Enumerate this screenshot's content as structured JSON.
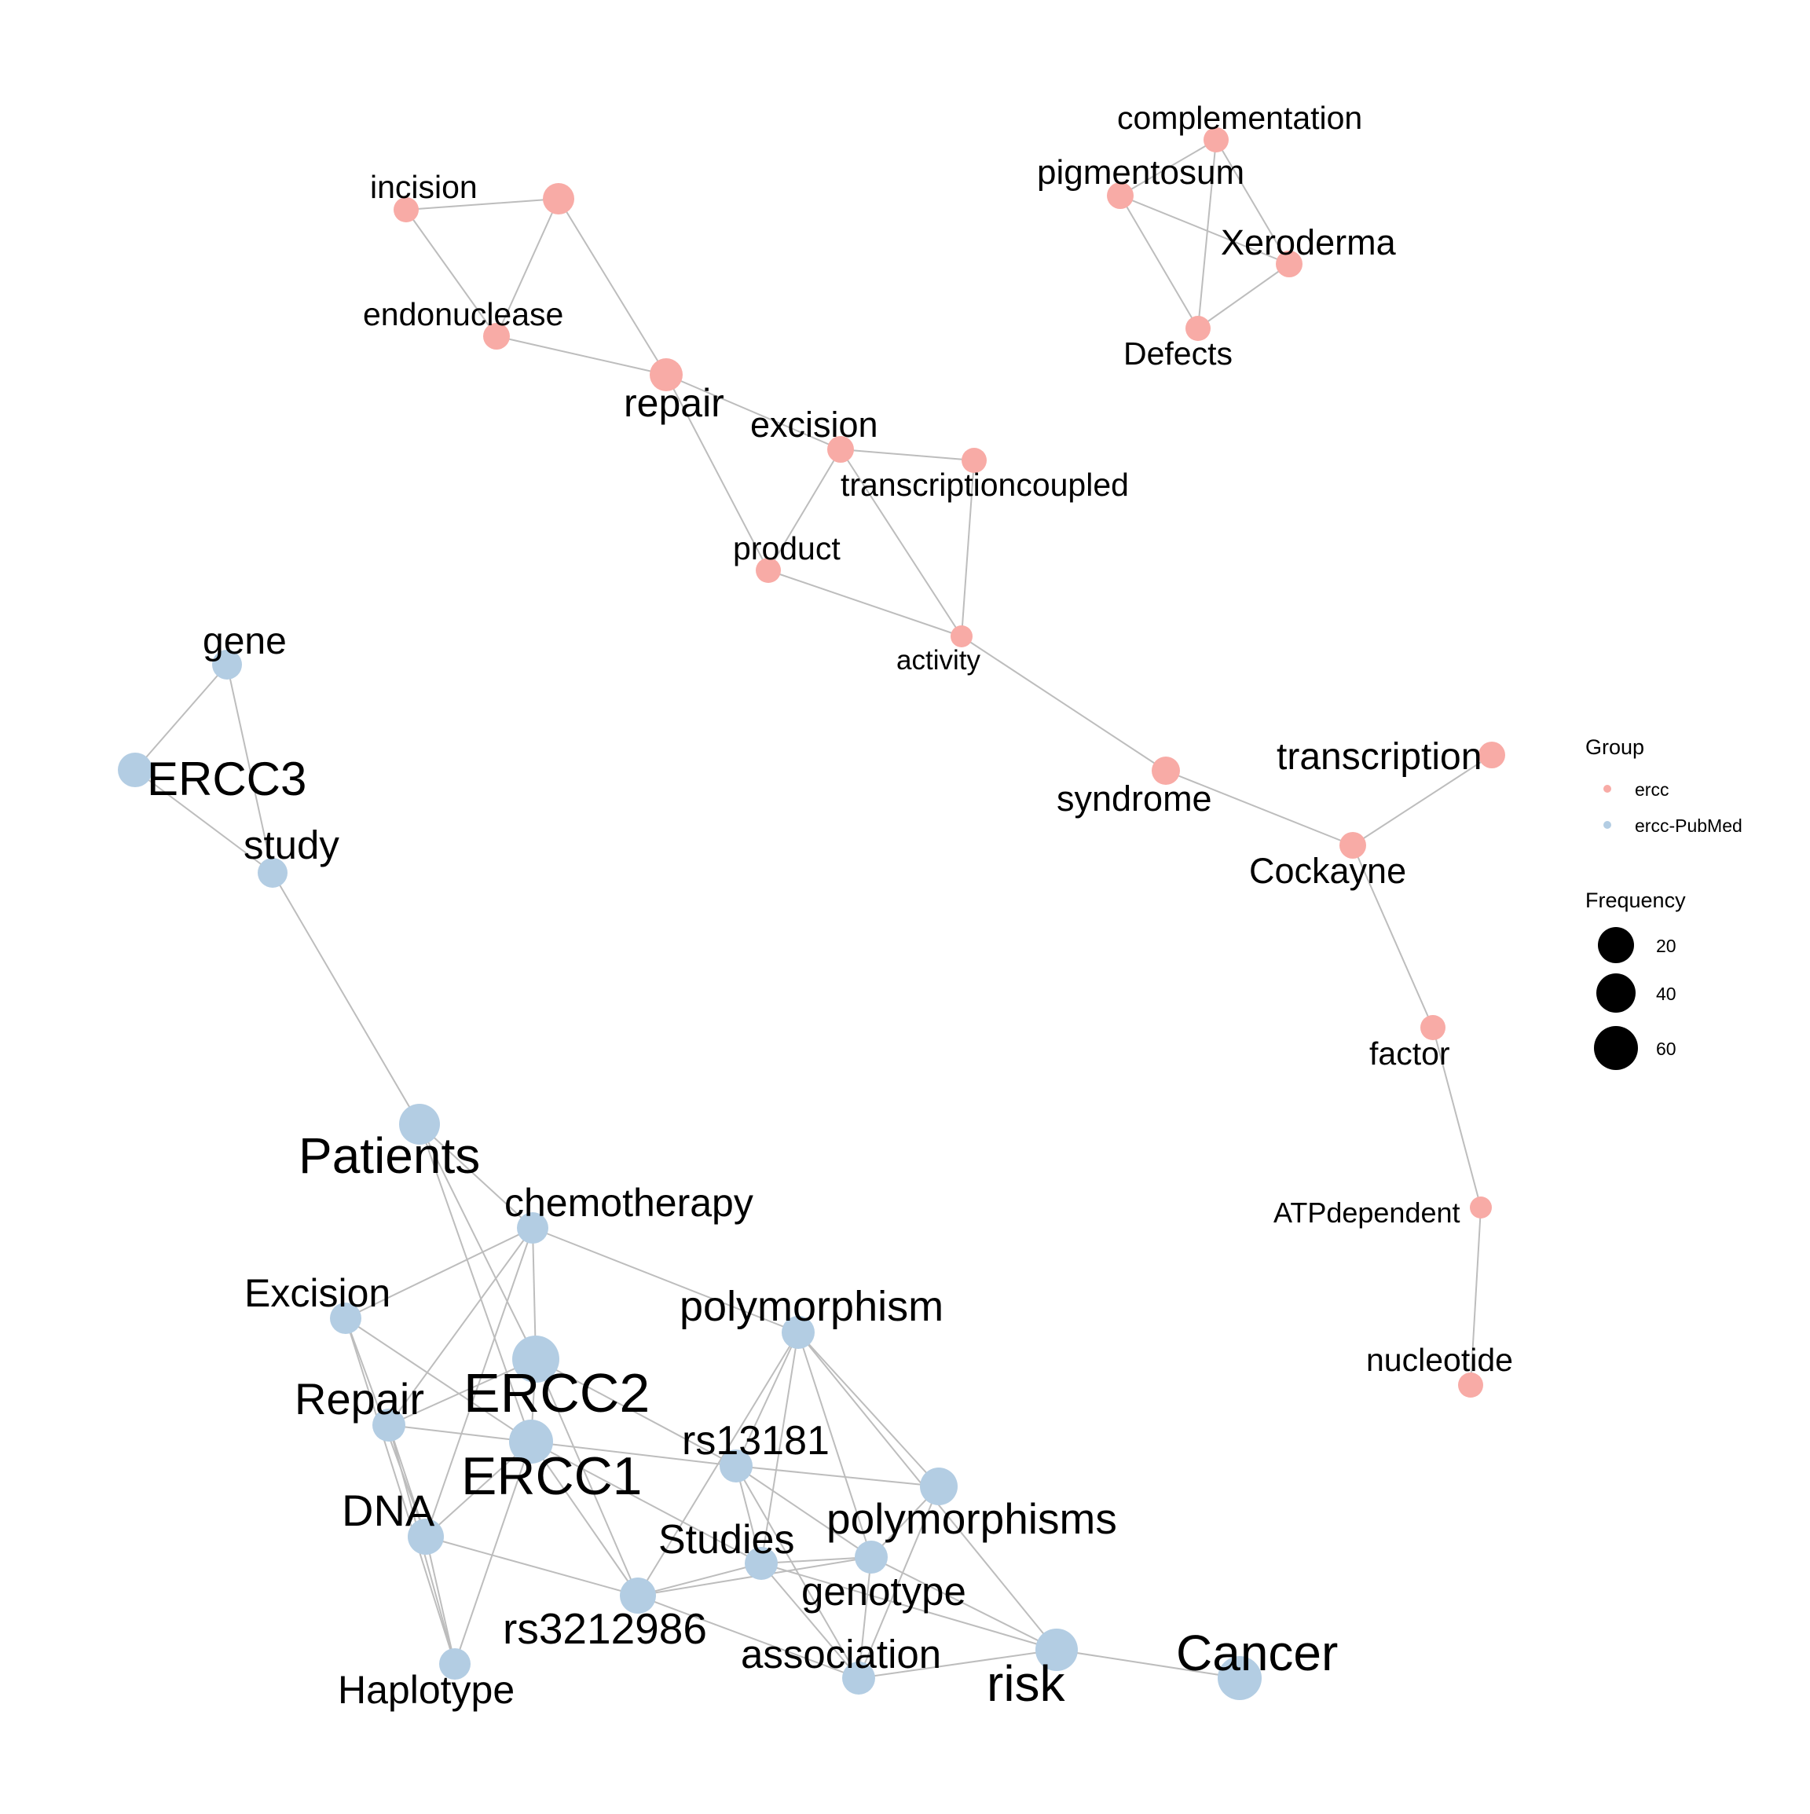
{
  "colors": {
    "ercc": "#f8aba6",
    "ercc-PubMed": "#b3cde3",
    "edge": "#bdbdbd"
  },
  "legend": {
    "group_title": "Group",
    "groups": [
      {
        "key": "ercc",
        "label": "ercc"
      },
      {
        "key": "ercc-PubMed",
        "label": "ercc-PubMed"
      }
    ],
    "frequency_title": "Frequency",
    "frequency_values": [
      20,
      40,
      60
    ]
  },
  "nodes": [
    {
      "id": "complementation",
      "label": "complementation",
      "group": "ercc"
    },
    {
      "id": "pigmentosum",
      "label": "pigmentosum",
      "group": "ercc"
    },
    {
      "id": "Xeroderma",
      "label": "Xeroderma",
      "group": "ercc"
    },
    {
      "id": "Defects",
      "label": "Defects",
      "group": "ercc"
    },
    {
      "id": "incision",
      "label": "incision",
      "group": "ercc"
    },
    {
      "id": "unlabeled",
      "label": "",
      "group": "ercc"
    },
    {
      "id": "endonuclease",
      "label": "endonuclease",
      "group": "ercc"
    },
    {
      "id": "repair",
      "label": "repair",
      "group": "ercc"
    },
    {
      "id": "excision",
      "label": "excision",
      "group": "ercc"
    },
    {
      "id": "transcriptioncoupled",
      "label": "transcriptioncoupled",
      "group": "ercc"
    },
    {
      "id": "product",
      "label": "product",
      "group": "ercc"
    },
    {
      "id": "activity",
      "label": "activity",
      "group": "ercc"
    },
    {
      "id": "syndrome",
      "label": "syndrome",
      "group": "ercc"
    },
    {
      "id": "transcription",
      "label": "transcription",
      "group": "ercc"
    },
    {
      "id": "Cockayne",
      "label": "Cockayne",
      "group": "ercc"
    },
    {
      "id": "factor",
      "label": "factor",
      "group": "ercc"
    },
    {
      "id": "ATPdependent",
      "label": "ATPdependent",
      "group": "ercc"
    },
    {
      "id": "nucleotide",
      "label": "nucleotide",
      "group": "ercc"
    },
    {
      "id": "gene",
      "label": "gene",
      "group": "ercc-PubMed"
    },
    {
      "id": "ERCC3",
      "label": "ERCC3",
      "group": "ercc-PubMed"
    },
    {
      "id": "study",
      "label": "study",
      "group": "ercc-PubMed"
    },
    {
      "id": "Patients",
      "label": "Patients",
      "group": "ercc-PubMed"
    },
    {
      "id": "chemotherapy",
      "label": "chemotherapy",
      "group": "ercc-PubMed"
    },
    {
      "id": "Excision",
      "label": "Excision",
      "group": "ercc-PubMed"
    },
    {
      "id": "polymorphism",
      "label": "polymorphism",
      "group": "ercc-PubMed"
    },
    {
      "id": "ERCC2",
      "label": "ERCC2",
      "group": "ercc-PubMed"
    },
    {
      "id": "Repair",
      "label": "Repair",
      "group": "ercc-PubMed"
    },
    {
      "id": "ERCC1",
      "label": "ERCC1",
      "group": "ercc-PubMed"
    },
    {
      "id": "rs13181",
      "label": "rs13181",
      "group": "ercc-PubMed"
    },
    {
      "id": "polymorphisms",
      "label": "polymorphisms",
      "group": "ercc-PubMed"
    },
    {
      "id": "DNA",
      "label": "DNA",
      "group": "ercc-PubMed"
    },
    {
      "id": "Studies",
      "label": "Studies",
      "group": "ercc-PubMed"
    },
    {
      "id": "genotype",
      "label": "genotype",
      "group": "ercc-PubMed"
    },
    {
      "id": "rs3212986",
      "label": "rs3212986",
      "group": "ercc-PubMed"
    },
    {
      "id": "association",
      "label": "association",
      "group": "ercc-PubMed"
    },
    {
      "id": "risk",
      "label": "risk",
      "group": "ercc-PubMed"
    },
    {
      "id": "Cancer",
      "label": "Cancer",
      "group": "ercc-PubMed"
    },
    {
      "id": "Haplotype",
      "label": "Haplotype",
      "group": "ercc-PubMed"
    }
  ],
  "edges": [
    [
      "complementation",
      "pigmentosum"
    ],
    [
      "complementation",
      "Xeroderma"
    ],
    [
      "complementation",
      "Defects"
    ],
    [
      "pigmentosum",
      "Xeroderma"
    ],
    [
      "pigmentosum",
      "Defects"
    ],
    [
      "Xeroderma",
      "Defects"
    ],
    [
      "incision",
      "unlabeled"
    ],
    [
      "incision",
      "endonuclease"
    ],
    [
      "unlabeled",
      "endonuclease"
    ],
    [
      "unlabeled",
      "repair"
    ],
    [
      "endonuclease",
      "repair"
    ],
    [
      "repair",
      "excision"
    ],
    [
      "repair",
      "product"
    ],
    [
      "excision",
      "transcriptioncoupled"
    ],
    [
      "excision",
      "product"
    ],
    [
      "excision",
      "activity"
    ],
    [
      "transcriptioncoupled",
      "activity"
    ],
    [
      "product",
      "activity"
    ],
    [
      "activity",
      "syndrome"
    ],
    [
      "syndrome",
      "Cockayne"
    ],
    [
      "transcription",
      "Cockayne"
    ],
    [
      "Cockayne",
      "factor"
    ],
    [
      "factor",
      "ATPdependent"
    ],
    [
      "ATPdependent",
      "nucleotide"
    ],
    [
      "gene",
      "ERCC3"
    ],
    [
      "gene",
      "study"
    ],
    [
      "ERCC3",
      "study"
    ],
    [
      "study",
      "Patients"
    ],
    [
      "Patients",
      "chemotherapy"
    ],
    [
      "Patients",
      "ERCC2"
    ],
    [
      "Patients",
      "ERCC1"
    ],
    [
      "chemotherapy",
      "Excision"
    ],
    [
      "chemotherapy",
      "polymorphism"
    ],
    [
      "chemotherapy",
      "ERCC2"
    ],
    [
      "chemotherapy",
      "Repair"
    ],
    [
      "chemotherapy",
      "DNA"
    ],
    [
      "Excision",
      "ERCC1"
    ],
    [
      "Excision",
      "DNA"
    ],
    [
      "Excision",
      "Haplotype"
    ],
    [
      "Repair",
      "ERCC2"
    ],
    [
      "Repair",
      "rs13181"
    ],
    [
      "Repair",
      "DNA"
    ],
    [
      "Repair",
      "Haplotype"
    ],
    [
      "ERCC2",
      "rs13181"
    ],
    [
      "ERCC2",
      "ERCC1"
    ],
    [
      "ERCC2",
      "rs3212986"
    ],
    [
      "ERCC1",
      "DNA"
    ],
    [
      "ERCC1",
      "rs3212986"
    ],
    [
      "ERCC1",
      "Haplotype"
    ],
    [
      "ERCC1",
      "Studies"
    ],
    [
      "rs13181",
      "polymorphisms"
    ],
    [
      "rs13181",
      "Studies"
    ],
    [
      "rs13181",
      "genotype"
    ],
    [
      "rs13181",
      "association"
    ],
    [
      "rs13181",
      "polymorphism"
    ],
    [
      "polymorphism",
      "polymorphisms"
    ],
    [
      "polymorphism",
      "Studies"
    ],
    [
      "polymorphism",
      "genotype"
    ],
    [
      "polymorphism",
      "rs3212986"
    ],
    [
      "polymorphism",
      "risk"
    ],
    [
      "polymorphisms",
      "genotype"
    ],
    [
      "polymorphisms",
      "association"
    ],
    [
      "DNA",
      "rs3212986"
    ],
    [
      "DNA",
      "Haplotype"
    ],
    [
      "Studies",
      "genotype"
    ],
    [
      "Studies",
      "rs3212986"
    ],
    [
      "Studies",
      "association"
    ],
    [
      "Studies",
      "risk"
    ],
    [
      "genotype",
      "rs3212986"
    ],
    [
      "genotype",
      "association"
    ],
    [
      "genotype",
      "risk"
    ],
    [
      "rs3212986",
      "association"
    ],
    [
      "association",
      "risk"
    ],
    [
      "risk",
      "Cancer"
    ]
  ]
}
